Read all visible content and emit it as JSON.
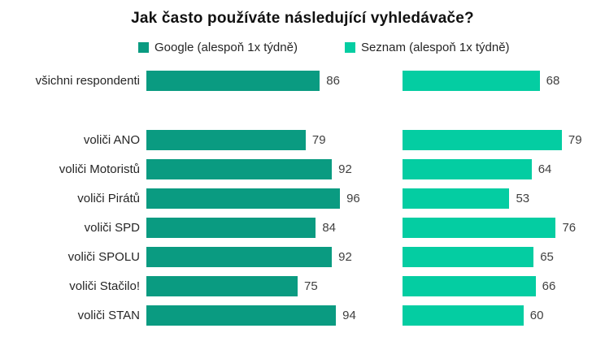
{
  "title": "Jak často používáte následující vyhledávače?",
  "legend": [
    {
      "label": "Google (alespoň 1x týdně)",
      "color": "#0a9b81"
    },
    {
      "label": "Seznam (alespoň 1x týdně)",
      "color": "#04cda2"
    }
  ],
  "chart_data": {
    "type": "bar",
    "orientation": "horizontal",
    "title": "Jak často používáte následující vyhledávače?",
    "categories": [
      "všichni respondenti",
      "voliči ANO",
      "voliči Motoristů",
      "voliči Pirátů",
      "voliči SPD",
      "voliči SPOLU",
      "voliči Stačilo!",
      "voliči STAN"
    ],
    "series": [
      {
        "name": "Google (alespoň 1x týdně)",
        "color": "#0a9b81",
        "values": [
          86,
          79,
          92,
          96,
          84,
          92,
          75,
          94
        ]
      },
      {
        "name": "Seznam (alespoň 1x týdně)",
        "color": "#04cda2",
        "values": [
          68,
          79,
          64,
          53,
          76,
          65,
          66,
          60
        ]
      }
    ],
    "xlim": [
      0,
      100
    ],
    "value_labels": true,
    "legend_position": "top",
    "gap_after_category_index": 0
  }
}
